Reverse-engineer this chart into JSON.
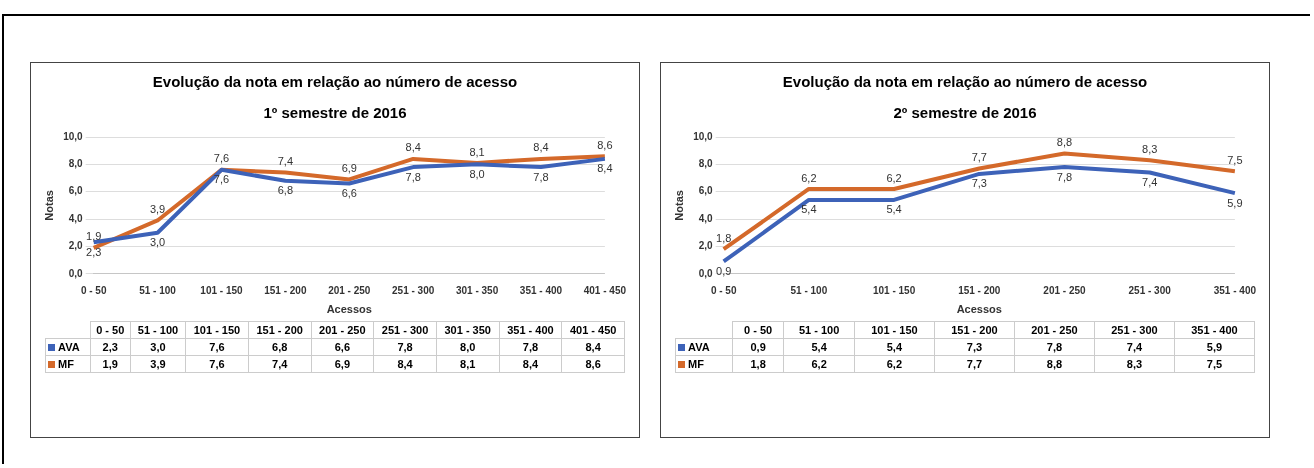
{
  "chart_data": [
    {
      "type": "line",
      "title": "Evolução da nota em relação ao número de acesso",
      "subtitle": "1º semestre de 2016",
      "xlabel": "Acessos",
      "ylabel": "Notas",
      "categories": [
        "0 - 50",
        "51 - 100",
        "101 - 150",
        "151 - 200",
        "201 - 250",
        "251 - 300",
        "301 - 350",
        "351 - 400",
        "401 - 450"
      ],
      "series": [
        {
          "name": "AVA",
          "color": "#3d62b8",
          "values": [
            2.3,
            3.0,
            7.6,
            6.8,
            6.6,
            7.8,
            8.0,
            7.8,
            8.4
          ],
          "value_labels": [
            "2,3",
            "3,0",
            "7,6",
            "6,8",
            "6,6",
            "7,8",
            "8,0",
            "7,8",
            "8,4"
          ]
        },
        {
          "name": "MF",
          "color": "#d4692a",
          "values": [
            1.9,
            3.9,
            7.6,
            7.4,
            6.9,
            8.4,
            8.1,
            8.4,
            8.6
          ],
          "value_labels": [
            "1,9",
            "3,9",
            "7,6",
            "7,4",
            "6,9",
            "8,4",
            "8,1",
            "8,4",
            "8,6"
          ]
        }
      ],
      "ylim": [
        0,
        10
      ],
      "yticks": [
        {
          "value": 0,
          "label": "0,0"
        },
        {
          "value": 2,
          "label": "2,0"
        },
        {
          "value": 4,
          "label": "4,0"
        },
        {
          "value": 6,
          "label": "6,0"
        },
        {
          "value": 8,
          "label": "8,0"
        },
        {
          "value": 10,
          "label": "10,0"
        }
      ],
      "grid": "y",
      "legend": "bottom",
      "marker": "none",
      "line_style": "solid"
    },
    {
      "type": "line",
      "title": "Evolução da nota em relação ao número de acesso",
      "subtitle": "2º semestre de 2016",
      "xlabel": "Acessos",
      "ylabel": "Notas",
      "categories": [
        "0 - 50",
        "51 - 100",
        "101 - 150",
        "151 - 200",
        "201 - 250",
        "251 - 300",
        "351 - 400"
      ],
      "series": [
        {
          "name": "AVA",
          "color": "#3d62b8",
          "values": [
            0.9,
            5.4,
            5.4,
            7.3,
            7.8,
            7.4,
            5.9
          ],
          "value_labels": [
            "0,9",
            "5,4",
            "5,4",
            "7,3",
            "7,8",
            "7,4",
            "5,9"
          ]
        },
        {
          "name": "MF",
          "color": "#d4692a",
          "values": [
            1.8,
            6.2,
            6.2,
            7.7,
            8.8,
            8.3,
            7.5
          ],
          "value_labels": [
            "1,8",
            "6,2",
            "6,2",
            "7,7",
            "8,8",
            "8,3",
            "7,5"
          ]
        }
      ],
      "ylim": [
        0,
        10
      ],
      "yticks": [
        {
          "value": 0,
          "label": "0,0"
        },
        {
          "value": 2,
          "label": "2,0"
        },
        {
          "value": 4,
          "label": "4,0"
        },
        {
          "value": 6,
          "label": "6,0"
        },
        {
          "value": 8,
          "label": "8,0"
        },
        {
          "value": 10,
          "label": "10,0"
        }
      ],
      "grid": "y",
      "legend": "bottom",
      "marker": "none",
      "line_style": "solid"
    }
  ]
}
